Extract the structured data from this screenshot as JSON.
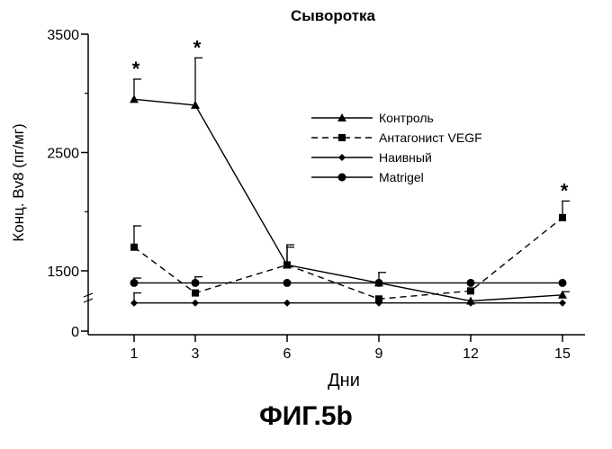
{
  "figure_label": "ФИГ.5b",
  "chart_data": {
    "type": "line",
    "title": "Сыворотка",
    "xlabel": "Дни",
    "ylabel": "Конц. Bv8 (пг/мг)",
    "x": [
      1,
      3,
      6,
      9,
      12,
      15
    ],
    "xticks": [
      "1",
      "3",
      "6",
      "9",
      "12",
      "15"
    ],
    "yticks": [
      0,
      1500,
      2500,
      3500
    ],
    "ylim": [
      0,
      3500
    ],
    "y_axis_break": "between 0 and 1500",
    "legend_position": "top-right",
    "series": [
      {
        "name": "Контроль",
        "marker": "triangle",
        "line": "solid",
        "values": [
          2950,
          2900,
          1550,
          1200,
          750,
          900
        ],
        "errors": [
          170,
          400,
          170,
          0,
          0,
          80
        ]
      },
      {
        "name": "Антагонист VEGF",
        "marker": "square",
        "line": "dashed",
        "values": [
          1700,
          950,
          1550,
          800,
          1000,
          1950
        ],
        "errors": [
          180,
          0,
          150,
          0,
          0,
          140
        ]
      },
      {
        "name": "Наивный",
        "marker": "diamond",
        "line": "solid",
        "values": [
          700,
          700,
          700,
          700,
          700,
          700
        ],
        "errors": [
          250,
          0,
          0,
          0,
          0,
          0
        ]
      },
      {
        "name": "Matrigel",
        "marker": "circle",
        "line": "solid",
        "values": [
          1200,
          1200,
          1200,
          1200,
          1200,
          1200
        ],
        "errors": [
          120,
          150,
          0,
          260,
          0,
          0
        ]
      }
    ],
    "annotations": [
      {
        "text": "*",
        "x": 1
      },
      {
        "text": "*",
        "x": 3
      },
      {
        "text": "*",
        "x": 15
      }
    ]
  }
}
